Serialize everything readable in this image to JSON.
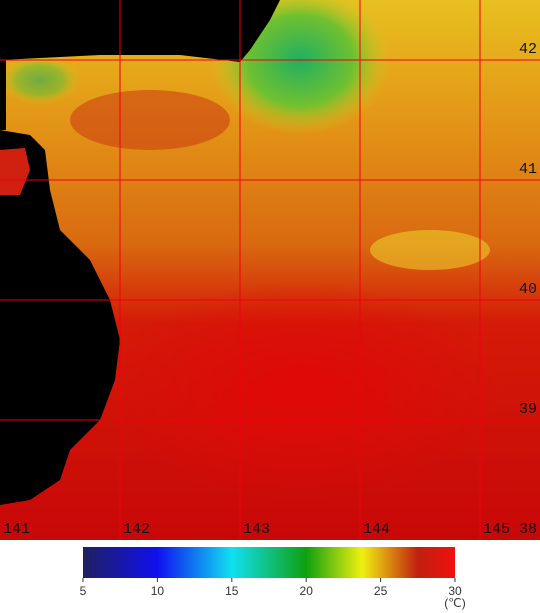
{
  "map": {
    "latitudes": [
      42,
      41,
      40,
      39,
      38
    ],
    "longitudes": [
      141,
      142,
      143,
      144,
      145
    ]
  },
  "colorbar": {
    "ticks": [
      5,
      10,
      15,
      20,
      25,
      30
    ],
    "unit": "(℃)"
  }
}
